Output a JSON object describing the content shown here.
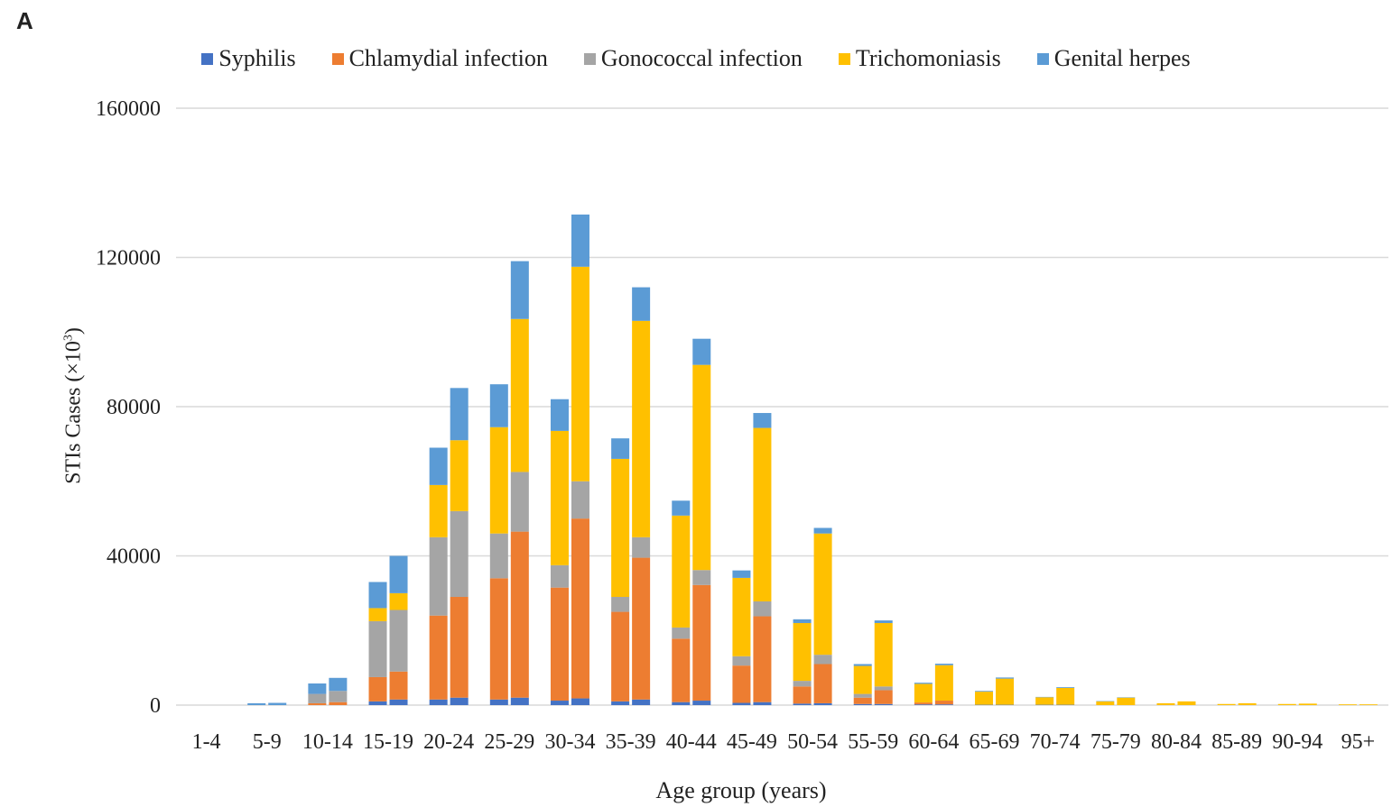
{
  "panel_label": "A",
  "chart_data": {
    "type": "bar",
    "stacked": true,
    "title": "",
    "xlabel": "Age group (years)",
    "ylabel_prefix": "STIs Cases (×10",
    "ylabel_exp": "3",
    "ylabel_suffix": ")",
    "ylim": [
      0,
      160000
    ],
    "yticks": [
      0,
      40000,
      80000,
      120000,
      160000
    ],
    "grid": true,
    "legend_position": "top",
    "categories": [
      "1-4",
      "5-9",
      "10-14",
      "15-19",
      "20-24",
      "25-29",
      "30-34",
      "35-39",
      "40-44",
      "45-49",
      "50-54",
      "55-59",
      "60-64",
      "65-69",
      "70-74",
      "75-79",
      "80-84",
      "85-89",
      "90-94",
      "95+"
    ],
    "bars_per_category": 2,
    "series": [
      {
        "name": "Syphilis",
        "color": "#4472c4",
        "values": [
          [
            0,
            0
          ],
          [
            0,
            0
          ],
          [
            0,
            0
          ],
          [
            1000,
            1500
          ],
          [
            1500,
            2000
          ],
          [
            1500,
            2000
          ],
          [
            1200,
            1800
          ],
          [
            1000,
            1500
          ],
          [
            800,
            1200
          ],
          [
            600,
            800
          ],
          [
            400,
            500
          ],
          [
            300,
            300
          ],
          [
            200,
            200
          ],
          [
            100,
            100
          ],
          [
            100,
            100
          ],
          [
            0,
            0
          ],
          [
            0,
            0
          ],
          [
            0,
            0
          ],
          [
            0,
            0
          ],
          [
            0,
            0
          ]
        ]
      },
      {
        "name": "Chlamydial infection",
        "color": "#ed7d31",
        "values": [
          [
            0,
            0
          ],
          [
            0,
            0
          ],
          [
            500,
            800
          ],
          [
            6500,
            7500
          ],
          [
            22500,
            27000
          ],
          [
            32500,
            44500
          ],
          [
            30300,
            48200
          ],
          [
            24000,
            38000
          ],
          [
            17000,
            31000
          ],
          [
            10000,
            23000
          ],
          [
            4600,
            10500
          ],
          [
            1700,
            3700
          ],
          [
            500,
            1000
          ],
          [
            0,
            0
          ],
          [
            0,
            0
          ],
          [
            0,
            0
          ],
          [
            0,
            0
          ],
          [
            0,
            0
          ],
          [
            0,
            0
          ],
          [
            0,
            0
          ]
        ]
      },
      {
        "name": "Gonococcal infection",
        "color": "#a5a5a5",
        "values": [
          [
            0,
            0
          ],
          [
            0,
            0
          ],
          [
            2500,
            3000
          ],
          [
            15000,
            16500
          ],
          [
            21000,
            23000
          ],
          [
            12000,
            16000
          ],
          [
            6000,
            10000
          ],
          [
            4000,
            5500
          ],
          [
            3000,
            4000
          ],
          [
            2500,
            4000
          ],
          [
            1500,
            2500
          ],
          [
            1000,
            1000
          ],
          [
            0,
            0
          ],
          [
            0,
            0
          ],
          [
            0,
            0
          ],
          [
            0,
            0
          ],
          [
            0,
            0
          ],
          [
            0,
            0
          ],
          [
            0,
            0
          ],
          [
            0,
            0
          ]
        ]
      },
      {
        "name": "Trichomoniasis",
        "color": "#ffc000",
        "values": [
          [
            0,
            0
          ],
          [
            0,
            0
          ],
          [
            0,
            0
          ],
          [
            3500,
            4500
          ],
          [
            14000,
            19000
          ],
          [
            28500,
            41000
          ],
          [
            36000,
            57500
          ],
          [
            37000,
            58000
          ],
          [
            30000,
            55000
          ],
          [
            21000,
            46500
          ],
          [
            15500,
            32500
          ],
          [
            7500,
            17000
          ],
          [
            5000,
            9500
          ],
          [
            3500,
            7000
          ],
          [
            2000,
            4500
          ],
          [
            1000,
            2000
          ],
          [
            500,
            1000
          ],
          [
            300,
            500
          ],
          [
            300,
            400
          ],
          [
            200,
            200
          ]
        ]
      },
      {
        "name": "Genital herpes",
        "color": "#5b9bd5",
        "values": [
          [
            0,
            0
          ],
          [
            500,
            600
          ],
          [
            2800,
            3500
          ],
          [
            7000,
            10000
          ],
          [
            10000,
            14000
          ],
          [
            11500,
            15500
          ],
          [
            8500,
            14000
          ],
          [
            5500,
            9000
          ],
          [
            4000,
            7000
          ],
          [
            2000,
            4000
          ],
          [
            1000,
            1500
          ],
          [
            500,
            700
          ],
          [
            300,
            400
          ],
          [
            200,
            300
          ],
          [
            100,
            200
          ],
          [
            100,
            100
          ],
          [
            0,
            0
          ],
          [
            0,
            0
          ],
          [
            0,
            0
          ],
          [
            0,
            0
          ]
        ]
      }
    ]
  }
}
